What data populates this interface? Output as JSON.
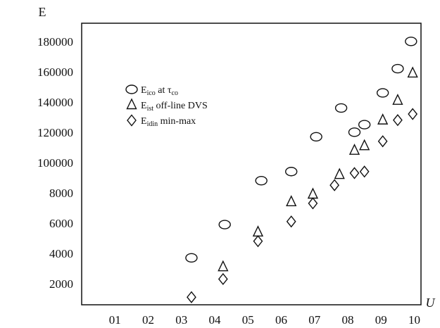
{
  "chart_data": {
    "type": "scatter",
    "title": "",
    "xlabel": "U",
    "ylabel": "E",
    "grid": false,
    "legend_position": "upper-left",
    "x_ticks": [
      "01",
      "02",
      "03",
      "04",
      "05",
      "06",
      "07",
      "08",
      "09",
      "10"
    ],
    "x_tick_positions": [
      1,
      2,
      3,
      4,
      5,
      6,
      7,
      8,
      9,
      10
    ],
    "y_ticks": [
      "2000",
      "4000",
      "6000",
      "8000",
      "100000",
      "120000",
      "140000",
      "160000",
      "180000"
    ],
    "y_tick_positions": [
      1,
      2,
      3,
      4,
      5,
      6,
      7,
      8,
      9
    ],
    "xlim": [
      0,
      10.2
    ],
    "ylim": [
      0.3,
      9.6
    ],
    "series": [
      {
        "name": "E_ico at τ_co",
        "label_main": "E",
        "label_sub": "ico",
        "label_mid": " at τ",
        "label_sub2": "co",
        "label_tail": "",
        "marker": "circle",
        "points": [
          [
            3.3,
            1.85
          ],
          [
            4.3,
            2.95
          ],
          [
            5.4,
            4.4
          ],
          [
            6.3,
            4.7
          ],
          [
            7.05,
            5.85
          ],
          [
            7.8,
            6.8
          ],
          [
            8.2,
            6.0
          ],
          [
            8.5,
            6.25
          ],
          [
            9.05,
            7.3
          ],
          [
            9.5,
            8.1
          ],
          [
            9.9,
            9.0
          ]
        ]
      },
      {
        "name": "E_ist off-line DVS",
        "label_main": "E",
        "label_sub": "ist",
        "label_mid": " off-line DVS",
        "label_sub2": "",
        "label_tail": "",
        "marker": "triangle",
        "points": [
          [
            4.25,
            1.55
          ],
          [
            5.3,
            2.7
          ],
          [
            6.3,
            3.7
          ],
          [
            6.95,
            3.95
          ],
          [
            7.75,
            4.6
          ],
          [
            8.2,
            5.4
          ],
          [
            8.5,
            5.55
          ],
          [
            9.05,
            6.4
          ],
          [
            9.5,
            7.05
          ],
          [
            9.95,
            7.95
          ]
        ]
      },
      {
        "name": "E_idin min-max",
        "label_main": "E",
        "label_sub": "idin",
        "label_mid": " min-max",
        "label_sub2": "",
        "label_tail": "",
        "marker": "diamond",
        "points": [
          [
            3.3,
            0.55
          ],
          [
            4.25,
            1.15
          ],
          [
            5.3,
            2.4
          ],
          [
            6.3,
            3.05
          ],
          [
            6.95,
            3.65
          ],
          [
            7.6,
            4.25
          ],
          [
            8.2,
            4.65
          ],
          [
            8.5,
            4.7
          ],
          [
            9.05,
            5.7
          ],
          [
            9.5,
            6.4
          ],
          [
            9.95,
            6.6
          ]
        ]
      }
    ]
  }
}
